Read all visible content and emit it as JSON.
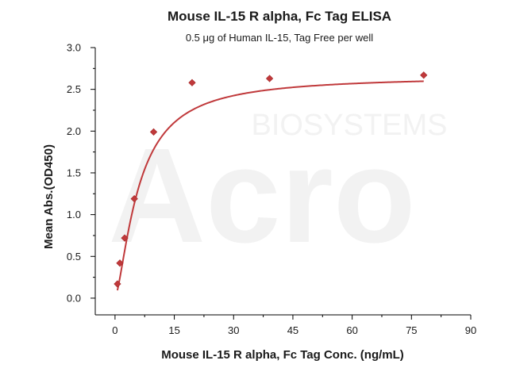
{
  "chart_data": {
    "type": "scatter",
    "title": "Mouse IL-15 R alpha, Fc Tag ELISA",
    "subtitle": "0.5 μg of Human IL-15, Tag Free per well",
    "xlabel": "Mouse IL-15 R alpha, Fc Tag Conc. (ng/mL)",
    "ylabel": "Mean Abs.(OD450)",
    "xlim": [
      -5,
      90
    ],
    "ylim": [
      -0.2,
      3.0
    ],
    "x_ticks": [
      0,
      15,
      30,
      45,
      60,
      75,
      90
    ],
    "y_ticks": [
      0.0,
      0.5,
      1.0,
      1.5,
      2.0,
      2.5,
      3.0
    ],
    "x_tick_labels": [
      "0",
      "15",
      "30",
      "45",
      "60",
      "75",
      "90"
    ],
    "y_tick_labels": [
      "0.0",
      "0.5",
      "1.0",
      "1.5",
      "2.0",
      "2.5",
      "3.0"
    ],
    "series": [
      {
        "x": [
          0.61,
          1.22,
          2.44,
          4.88,
          9.77,
          19.5,
          39.1,
          78.1
        ],
        "y": [
          0.17,
          0.42,
          0.72,
          1.19,
          1.99,
          2.58,
          2.63,
          2.67
        ],
        "marker": "diamond",
        "fit": "sigmoidal"
      }
    ],
    "grid": false,
    "color": "#c0393b"
  },
  "watermark": {
    "top_text": "BIOSYSTEMS",
    "main_text": "Acro"
  }
}
